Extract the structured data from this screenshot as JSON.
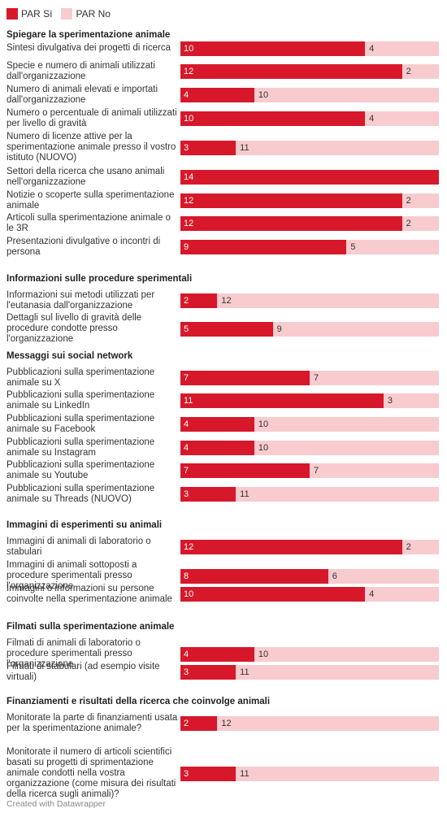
{
  "legend": [
    {
      "label": "PAR Sì",
      "color": "#d7182a"
    },
    {
      "label": "PAR No",
      "color": "#f8cbcf"
    }
  ],
  "footer": "Created with Datawrapper",
  "chart_data": {
    "type": "bar",
    "stacked": true,
    "orientation": "horizontal",
    "total": 14,
    "series": [
      {
        "name": "PAR Sì",
        "color": "#d7182a"
      },
      {
        "name": "PAR No",
        "color": "#f8cbcf"
      }
    ],
    "groups": [
      {
        "title": "Spiegare la sperimentazione animale",
        "rows": [
          {
            "label": "Sintesi divulgativa dei progetti di ricerca",
            "si": 10,
            "no": 4
          },
          {
            "label": "Specie e numero di animali utilizzati dall'organizzazione",
            "si": 12,
            "no": 2
          },
          {
            "label": "Numero di animali elevati e importati dall'organizzazione",
            "si": 4,
            "no": 10
          },
          {
            "label": "Numero o percentuale di animali utilizzati per livello di gravità",
            "si": 10,
            "no": 4
          },
          {
            "label": "Numero di licenze attive per la sperimentazione animale presso il vostro istituto (NUOVO)",
            "si": 3,
            "no": 11
          },
          {
            "label": "Settori della ricerca che usano animali nell'organizzazione",
            "si": 14,
            "no": 0
          },
          {
            "label": "Notizie o scoperte sulla sperimentazione animale",
            "si": 12,
            "no": 2
          },
          {
            "label": "Articoli sulla sperimentazione animale o le 3R",
            "si": 12,
            "no": 2
          },
          {
            "label": "Presentazioni divulgative o incontri di persona",
            "si": 9,
            "no": 5
          }
        ]
      },
      {
        "title": "Informazioni sulle procedure sperimentali",
        "rows": [
          {
            "label": "Informazioni sui metodi utilizzati per l'eutanasia dall'organizzazione",
            "si": 2,
            "no": 12
          },
          {
            "label": "Dettagli sul livello di gravità delle procedure condotte presso l'organizzazione",
            "si": 5,
            "no": 9
          }
        ]
      },
      {
        "title": "Messaggi sui social network",
        "rows": [
          {
            "label": "Pubblicazioni sulla sperimentazione animale su X",
            "si": 7,
            "no": 7
          },
          {
            "label": "Pubblicazioni sulla sperimentazione animale su LinkedIn",
            "si": 11,
            "no": 3
          },
          {
            "label": "Pubblicazioni sulla sperimentazione animale su Facebook",
            "si": 4,
            "no": 10
          },
          {
            "label": "Pubblicazioni sulla sperimentazione animale su Instagram",
            "si": 4,
            "no": 10
          },
          {
            "label": "Pubblicazioni sulla sperimentazione animale su Youtube",
            "si": 7,
            "no": 7
          },
          {
            "label": "Pubblicazioni sulla sperimentazione animale su Threads (NUOVO)",
            "si": 3,
            "no": 11
          }
        ]
      },
      {
        "title": "Immagini di esperimenti su animali",
        "rows": [
          {
            "label": "Immagini di animali di laboratorio o stabulari",
            "si": 12,
            "no": 2
          },
          {
            "label": "Immagini di animali sottoposti a procedure sperimentali presso l'organizzazione",
            "si": 8,
            "no": 6
          },
          {
            "label": "Immagini o informazioni su persone coinvolte nella sperimentazione animale",
            "si": 10,
            "no": 4
          }
        ]
      },
      {
        "title": "Filmati sulla sperimentazione animale",
        "rows": [
          {
            "label": "Filmati di animali di laboratorio o procedure sperimentali presso l'organizzazione",
            "si": 4,
            "no": 10
          },
          {
            "label": "Filmati di stabulari (ad esempio visite virtuali)",
            "si": 3,
            "no": 11
          }
        ]
      },
      {
        "title": "Finanziamenti e risultati della ricerca che coinvolge animali",
        "rows": [
          {
            "label": "Monitorate la parte di finanziamenti usata per la sperimentazione animale?",
            "si": 2,
            "no": 12
          },
          {
            "label": "Monitorate il numero di articoli scientifici basati su progetti di sprimentazione animale condotti nella vostra organizzazione (come misura dei risultati della ricerca sugli animali)?",
            "si": 3,
            "no": 11
          }
        ]
      }
    ]
  }
}
